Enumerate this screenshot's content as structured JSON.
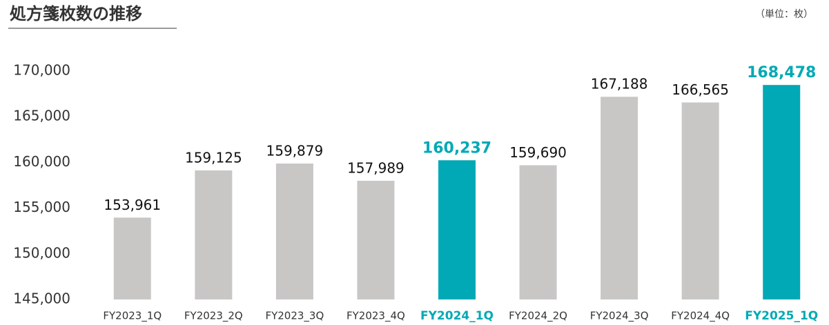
{
  "chart_data": {
    "type": "bar",
    "title": "処方箋枚数の推移",
    "unit": "（単位：枚）",
    "categories": [
      "FY2023_1Q",
      "FY2023_2Q",
      "FY2023_3Q",
      "FY2023_4Q",
      "FY2024_1Q",
      "FY2024_2Q",
      "FY2024_3Q",
      "FY2024_4Q",
      "FY2025_1Q"
    ],
    "values": [
      153961,
      159125,
      159879,
      157989,
      160237,
      159690,
      167188,
      166565,
      168478
    ],
    "value_labels": [
      "153,961",
      "159,125",
      "159,879",
      "157,989",
      "160,237",
      "159,690",
      "167,188",
      "166,565",
      "168,478"
    ],
    "color": "#c8c7c6",
    "colors": [
      "#c8c7c6",
      "#c8c7c6",
      "#c8c7c6",
      "#c8c7c6",
      "#00a9b5",
      "#c8c7c6",
      "#c8c7c6",
      "#c8c7c6",
      "#00a9b5"
    ],
    "ylim": [
      145000,
      170000
    ],
    "yticks": [
      {
        "value": 145000,
        "label": "145,000"
      },
      {
        "value": 150000,
        "label": "150,000"
      },
      {
        "value": 155000,
        "label": "155,000"
      },
      {
        "value": 160000,
        "label": "160,000"
      },
      {
        "value": 165000,
        "label": "165,000"
      },
      {
        "value": 170000,
        "label": "170,000"
      }
    ],
    "grid": false
  }
}
